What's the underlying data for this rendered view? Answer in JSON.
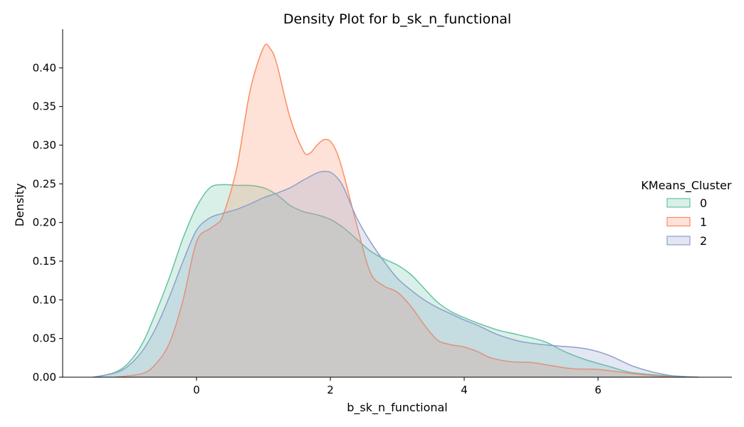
{
  "chart_data": {
    "type": "area",
    "title": "Density Plot for b_sk_n_functional",
    "xlabel": "b_sk_n_functional",
    "ylabel": "Density",
    "xlim": [
      -2.0,
      8.0
    ],
    "ylim": [
      0.0,
      0.45
    ],
    "xticks": [
      0,
      2,
      4,
      6
    ],
    "xtick_labels": [
      "0",
      "2",
      "4",
      "6"
    ],
    "yticks": [
      0.0,
      0.05,
      0.1,
      0.15,
      0.2,
      0.25,
      0.3,
      0.35,
      0.4
    ],
    "ytick_labels": [
      "0.00",
      "0.05",
      "0.10",
      "0.15",
      "0.20",
      "0.25",
      "0.30",
      "0.35",
      "0.40"
    ],
    "grid": false,
    "legend": {
      "title": "KMeans_Cluster",
      "placement": "center-right"
    },
    "series": [
      {
        "name": "0",
        "color": "#66c2a5",
        "fill_opacity": 0.25,
        "points": [
          [
            -1.5,
            0.0
          ],
          [
            -1.2,
            0.007
          ],
          [
            -1.0,
            0.02
          ],
          [
            -0.8,
            0.045
          ],
          [
            -0.6,
            0.085
          ],
          [
            -0.4,
            0.13
          ],
          [
            -0.2,
            0.18
          ],
          [
            0.0,
            0.22
          ],
          [
            0.2,
            0.245
          ],
          [
            0.4,
            0.249
          ],
          [
            0.6,
            0.248
          ],
          [
            0.8,
            0.248
          ],
          [
            1.0,
            0.245
          ],
          [
            1.2,
            0.236
          ],
          [
            1.4,
            0.222
          ],
          [
            1.6,
            0.214
          ],
          [
            1.8,
            0.21
          ],
          [
            2.0,
            0.204
          ],
          [
            2.2,
            0.193
          ],
          [
            2.4,
            0.178
          ],
          [
            2.6,
            0.163
          ],
          [
            2.8,
            0.153
          ],
          [
            3.0,
            0.145
          ],
          [
            3.2,
            0.133
          ],
          [
            3.4,
            0.115
          ],
          [
            3.6,
            0.097
          ],
          [
            3.8,
            0.085
          ],
          [
            4.0,
            0.077
          ],
          [
            4.2,
            0.07
          ],
          [
            4.5,
            0.061
          ],
          [
            4.8,
            0.055
          ],
          [
            5.2,
            0.046
          ],
          [
            5.5,
            0.033
          ],
          [
            5.8,
            0.023
          ],
          [
            6.2,
            0.013
          ],
          [
            6.5,
            0.006
          ],
          [
            7.0,
            0.002
          ],
          [
            7.3,
            0.0
          ]
        ]
      },
      {
        "name": "1",
        "color": "#fc8d62",
        "fill_opacity": 0.25,
        "points": [
          [
            -1.2,
            0.0
          ],
          [
            -0.8,
            0.005
          ],
          [
            -0.6,
            0.018
          ],
          [
            -0.4,
            0.045
          ],
          [
            -0.2,
            0.1
          ],
          [
            0.0,
            0.175
          ],
          [
            0.2,
            0.192
          ],
          [
            0.3,
            0.198
          ],
          [
            0.4,
            0.21
          ],
          [
            0.6,
            0.27
          ],
          [
            0.8,
            0.37
          ],
          [
            1.0,
            0.426
          ],
          [
            1.1,
            0.425
          ],
          [
            1.2,
            0.405
          ],
          [
            1.4,
            0.335
          ],
          [
            1.6,
            0.292
          ],
          [
            1.7,
            0.29
          ],
          [
            1.8,
            0.3
          ],
          [
            1.9,
            0.307
          ],
          [
            2.0,
            0.305
          ],
          [
            2.1,
            0.29
          ],
          [
            2.2,
            0.262
          ],
          [
            2.4,
            0.195
          ],
          [
            2.6,
            0.135
          ],
          [
            2.8,
            0.118
          ],
          [
            3.0,
            0.11
          ],
          [
            3.2,
            0.092
          ],
          [
            3.4,
            0.068
          ],
          [
            3.6,
            0.048
          ],
          [
            3.8,
            0.042
          ],
          [
            4.0,
            0.039
          ],
          [
            4.2,
            0.033
          ],
          [
            4.4,
            0.025
          ],
          [
            4.7,
            0.02
          ],
          [
            5.0,
            0.019
          ],
          [
            5.3,
            0.015
          ],
          [
            5.6,
            0.011
          ],
          [
            6.0,
            0.01
          ],
          [
            6.3,
            0.007
          ],
          [
            6.7,
            0.003
          ],
          [
            7.2,
            0.0
          ]
        ]
      },
      {
        "name": "2",
        "color": "#8da0cb",
        "fill_opacity": 0.25,
        "points": [
          [
            -1.55,
            0.0
          ],
          [
            -1.2,
            0.006
          ],
          [
            -1.0,
            0.016
          ],
          [
            -0.8,
            0.035
          ],
          [
            -0.6,
            0.065
          ],
          [
            -0.4,
            0.105
          ],
          [
            -0.2,
            0.15
          ],
          [
            0.0,
            0.19
          ],
          [
            0.2,
            0.206
          ],
          [
            0.4,
            0.212
          ],
          [
            0.6,
            0.217
          ],
          [
            0.8,
            0.224
          ],
          [
            1.0,
            0.232
          ],
          [
            1.2,
            0.238
          ],
          [
            1.4,
            0.245
          ],
          [
            1.6,
            0.255
          ],
          [
            1.8,
            0.264
          ],
          [
            1.9,
            0.266
          ],
          [
            2.0,
            0.265
          ],
          [
            2.1,
            0.258
          ],
          [
            2.2,
            0.245
          ],
          [
            2.4,
            0.205
          ],
          [
            2.6,
            0.175
          ],
          [
            2.8,
            0.15
          ],
          [
            3.0,
            0.128
          ],
          [
            3.2,
            0.113
          ],
          [
            3.4,
            0.1
          ],
          [
            3.6,
            0.09
          ],
          [
            3.8,
            0.082
          ],
          [
            4.0,
            0.074
          ],
          [
            4.2,
            0.067
          ],
          [
            4.5,
            0.055
          ],
          [
            4.8,
            0.047
          ],
          [
            5.0,
            0.044
          ],
          [
            5.3,
            0.041
          ],
          [
            5.6,
            0.039
          ],
          [
            5.8,
            0.037
          ],
          [
            6.0,
            0.033
          ],
          [
            6.2,
            0.027
          ],
          [
            6.5,
            0.015
          ],
          [
            6.8,
            0.007
          ],
          [
            7.1,
            0.002
          ],
          [
            7.5,
            0.0
          ]
        ]
      }
    ]
  }
}
